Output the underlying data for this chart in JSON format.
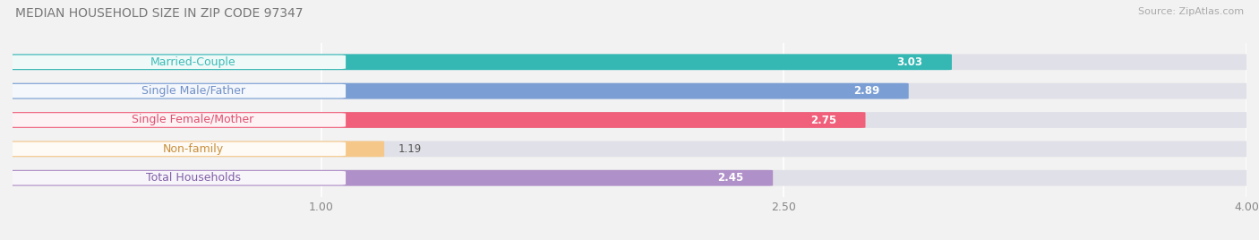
{
  "title": "MEDIAN HOUSEHOLD SIZE IN ZIP CODE 97347",
  "source": "Source: ZipAtlas.com",
  "categories": [
    "Married-Couple",
    "Single Male/Father",
    "Single Female/Mother",
    "Non-family",
    "Total Households"
  ],
  "values": [
    3.03,
    2.89,
    2.75,
    1.19,
    2.45
  ],
  "bar_colors": [
    "#35b8b4",
    "#7b9fd4",
    "#f0607a",
    "#f5c88a",
    "#b090c8"
  ],
  "label_text_colors": [
    "#3dbcb8",
    "#7090c8",
    "#e05070",
    "#c8903c",
    "#8060a8"
  ],
  "xlim": [
    0,
    4.0
  ],
  "xstart": 0.0,
  "xticks": [
    1.0,
    2.5,
    4.0
  ],
  "xtick_labels": [
    "1.00",
    "2.50",
    "4.00"
  ],
  "bar_height": 0.52,
  "background_color": "#f2f2f2",
  "title_fontsize": 10,
  "label_fontsize": 9,
  "value_fontsize": 8.5,
  "tick_fontsize": 9,
  "source_fontsize": 8
}
